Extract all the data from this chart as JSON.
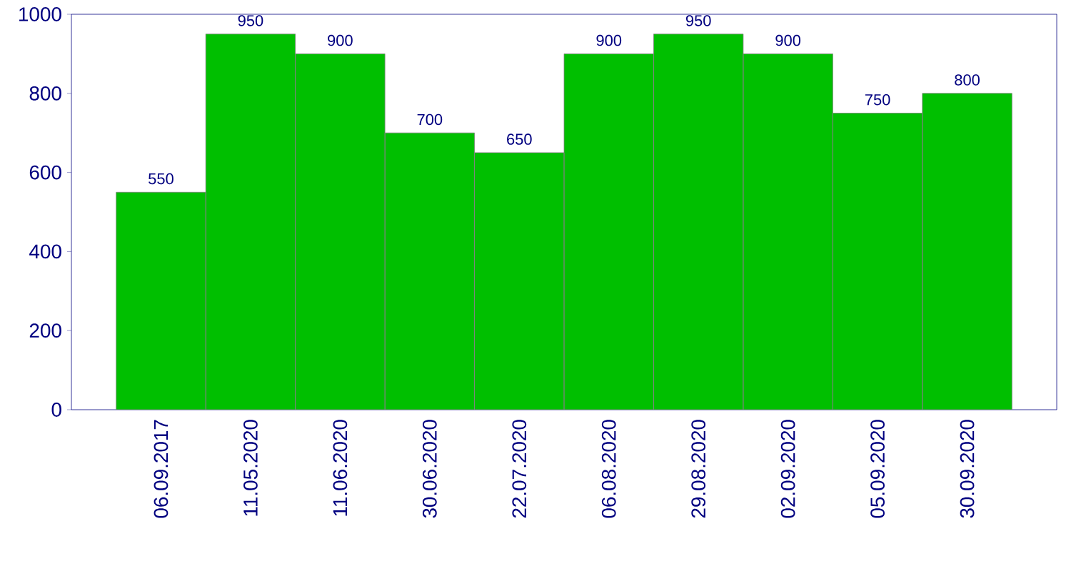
{
  "chart_data": {
    "type": "bar",
    "categories": [
      "06.09.2017",
      "11.05.2020",
      "11.06.2020",
      "30.06.2020",
      "22.07.2020",
      "06.08.2020",
      "29.08.2020",
      "02.09.2020",
      "05.09.2020",
      "30.09.2020"
    ],
    "values": [
      550,
      950,
      900,
      700,
      650,
      900,
      950,
      900,
      750,
      800
    ],
    "color": "#00bf00",
    "ylim": [
      0,
      1000
    ],
    "yticks": [
      0,
      200,
      400,
      600,
      800,
      1000
    ],
    "data_labels": true
  }
}
